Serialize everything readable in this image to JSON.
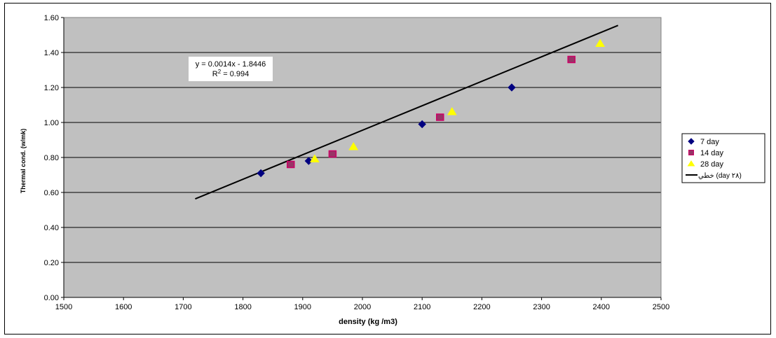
{
  "chart_data": {
    "type": "scatter",
    "xlabel": "density (kg /m3)",
    "ylabel": "Thermal cond. (w/mk)",
    "xlim": [
      1500,
      2500
    ],
    "ylim": [
      0,
      1.6
    ],
    "x_ticks": [
      "1500",
      "1600",
      "1700",
      "1800",
      "1900",
      "2000",
      "2100",
      "2200",
      "2300",
      "2400",
      "2500"
    ],
    "y_ticks": [
      "0.00",
      "0.20",
      "0.40",
      "0.60",
      "0.80",
      "1.00",
      "1.20",
      "1.40",
      "1.60"
    ],
    "grid": "horizontal",
    "legend_position": "right",
    "series": [
      {
        "name": "7 day",
        "marker": "diamond",
        "color": "#000080",
        "x": [
          1830,
          1910,
          2100,
          2250
        ],
        "y": [
          0.71,
          0.78,
          0.99,
          1.2
        ]
      },
      {
        "name": "14 day",
        "marker": "square",
        "color": "#993366",
        "x": [
          1880,
          1950,
          2130,
          2350
        ],
        "y": [
          0.76,
          0.82,
          1.03,
          1.36
        ]
      },
      {
        "name": "28 day",
        "marker": "triangle",
        "color": "#ffff00",
        "x": [
          1920,
          1985,
          2150,
          2398
        ],
        "y": [
          0.79,
          0.86,
          1.06,
          1.45
        ]
      }
    ],
    "trendline": {
      "name": "خطي (day ٢٨)",
      "slope": 0.0014,
      "intercept": -1.8446,
      "x_range": [
        1720,
        2428
      ],
      "color": "#000000",
      "equation_line1": "y = 0.0014x - 1.8446",
      "equation_line2_prefix": "R",
      "equation_line2_sup": "2",
      "equation_line2_suffix": " = 0.994"
    },
    "colors": {
      "plot_area": "#c0c0c0",
      "gridline": "#000000"
    }
  }
}
